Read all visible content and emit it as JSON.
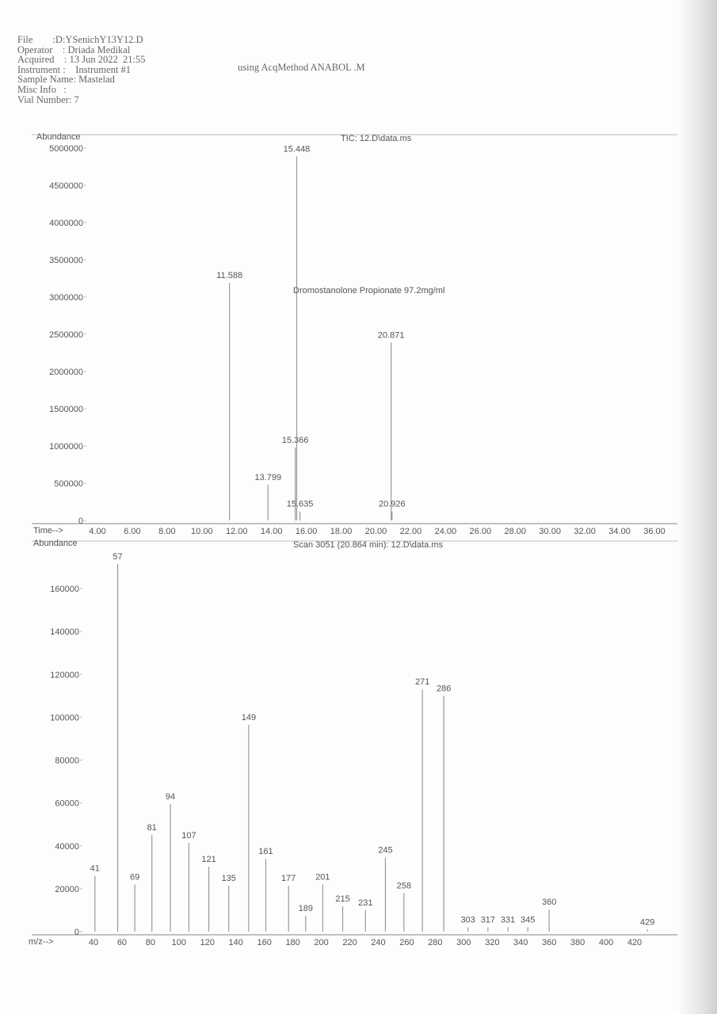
{
  "header": {
    "lines": [
      {
        "label": "File        ",
        "value": ":D:YSenichY13Y12.D"
      },
      {
        "label": "Operator    ",
        "value": ": Driada Medikal"
      },
      {
        "label": "Acquired    ",
        "value": ": 13 Jun 2022  21:55"
      },
      {
        "label": "Instrument :",
        "value": "    Instrument #1"
      },
      {
        "label": "Sample Name",
        "value": ": Mastelad"
      },
      {
        "label": "Misc Info  ",
        "value": " :"
      },
      {
        "label": "Vial Number",
        "value": ": 7"
      }
    ],
    "method": "using AcqMethod ANABOL .M"
  },
  "chart_data": [
    {
      "type": "bar",
      "title": "TIC: 12.D\\data.ms",
      "ylabel": "Abundance",
      "xlabel": "Time-->",
      "xlim": [
        4,
        36
      ],
      "ylim": [
        0,
        5000000
      ],
      "xticks": [
        "4.00",
        "6.00",
        "8.00",
        "10.00",
        "12.00",
        "14.00",
        "16.00",
        "18.00",
        "20.00",
        "22.00",
        "24.00",
        "26.00",
        "28.00",
        "30.00",
        "32.00",
        "34.00",
        "36.00"
      ],
      "yticks": [
        "0",
        "500000",
        "1000000",
        "1500000",
        "2000000",
        "2500000",
        "3000000",
        "3500000",
        "4000000",
        "4500000",
        "5000000"
      ],
      "annotation": "Dromostanolone Propionate 97.2mg/ml",
      "peaks": [
        {
          "x": 11.588,
          "y": 3190000,
          "label": "11.588"
        },
        {
          "x": 13.799,
          "y": 480000,
          "label": "13.799"
        },
        {
          "x": 15.366,
          "y": 980000,
          "label": "15.366"
        },
        {
          "x": 15.448,
          "y": 4890000,
          "label": "15.448"
        },
        {
          "x": 15.635,
          "y": 120000,
          "label": "15.635"
        },
        {
          "x": 20.871,
          "y": 2390000,
          "label": "20.871"
        },
        {
          "x": 20.926,
          "y": 120000,
          "label": "20.926"
        }
      ],
      "grid": false
    },
    {
      "type": "bar",
      "title": "Scan 3051 (20.864 min): 12.D\\data.ms",
      "ylabel": "Abundance",
      "xlabel": "m/z-->",
      "xlim": [
        40,
        420
      ],
      "ylim": [
        0,
        160000
      ],
      "xticks": [
        "40",
        "60",
        "80",
        "100",
        "120",
        "140",
        "160",
        "180",
        "200",
        "220",
        "240",
        "260",
        "280",
        "300",
        "320",
        "340",
        "360",
        "380",
        "400",
        "420"
      ],
      "yticks": [
        "0",
        "20000",
        "40000",
        "60000",
        "80000",
        "100000",
        "120000",
        "140000",
        "160000"
      ],
      "peaks": [
        {
          "x": 41,
          "y": 26000,
          "label": "41"
        },
        {
          "x": 57,
          "y": 171500,
          "label": "57"
        },
        {
          "x": 69,
          "y": 22000,
          "label": "69"
        },
        {
          "x": 81,
          "y": 45000,
          "label": "81"
        },
        {
          "x": 94,
          "y": 59500,
          "label": "94"
        },
        {
          "x": 107,
          "y": 41400,
          "label": "107"
        },
        {
          "x": 121,
          "y": 30300,
          "label": "121"
        },
        {
          "x": 135,
          "y": 21400,
          "label": "135"
        },
        {
          "x": 149,
          "y": 96500,
          "label": "149"
        },
        {
          "x": 161,
          "y": 34000,
          "label": "161"
        },
        {
          "x": 177,
          "y": 21400,
          "label": "177"
        },
        {
          "x": 189,
          "y": 7400,
          "label": "189"
        },
        {
          "x": 201,
          "y": 22000,
          "label": "201"
        },
        {
          "x": 215,
          "y": 11800,
          "label": "215"
        },
        {
          "x": 231,
          "y": 10000,
          "label": "231"
        },
        {
          "x": 245,
          "y": 34500,
          "label": "245"
        },
        {
          "x": 258,
          "y": 18000,
          "label": "258"
        },
        {
          "x": 271,
          "y": 113000,
          "label": "271"
        },
        {
          "x": 286,
          "y": 110000,
          "label": "286"
        },
        {
          "x": 303,
          "y": 2000,
          "label": "303"
        },
        {
          "x": 317,
          "y": 2000,
          "label": "317"
        },
        {
          "x": 331,
          "y": 2000,
          "label": "331"
        },
        {
          "x": 345,
          "y": 2000,
          "label": "345"
        },
        {
          "x": 360,
          "y": 10300,
          "label": "360"
        },
        {
          "x": 429,
          "y": 1000,
          "label": "429"
        }
      ],
      "grid": false
    }
  ]
}
